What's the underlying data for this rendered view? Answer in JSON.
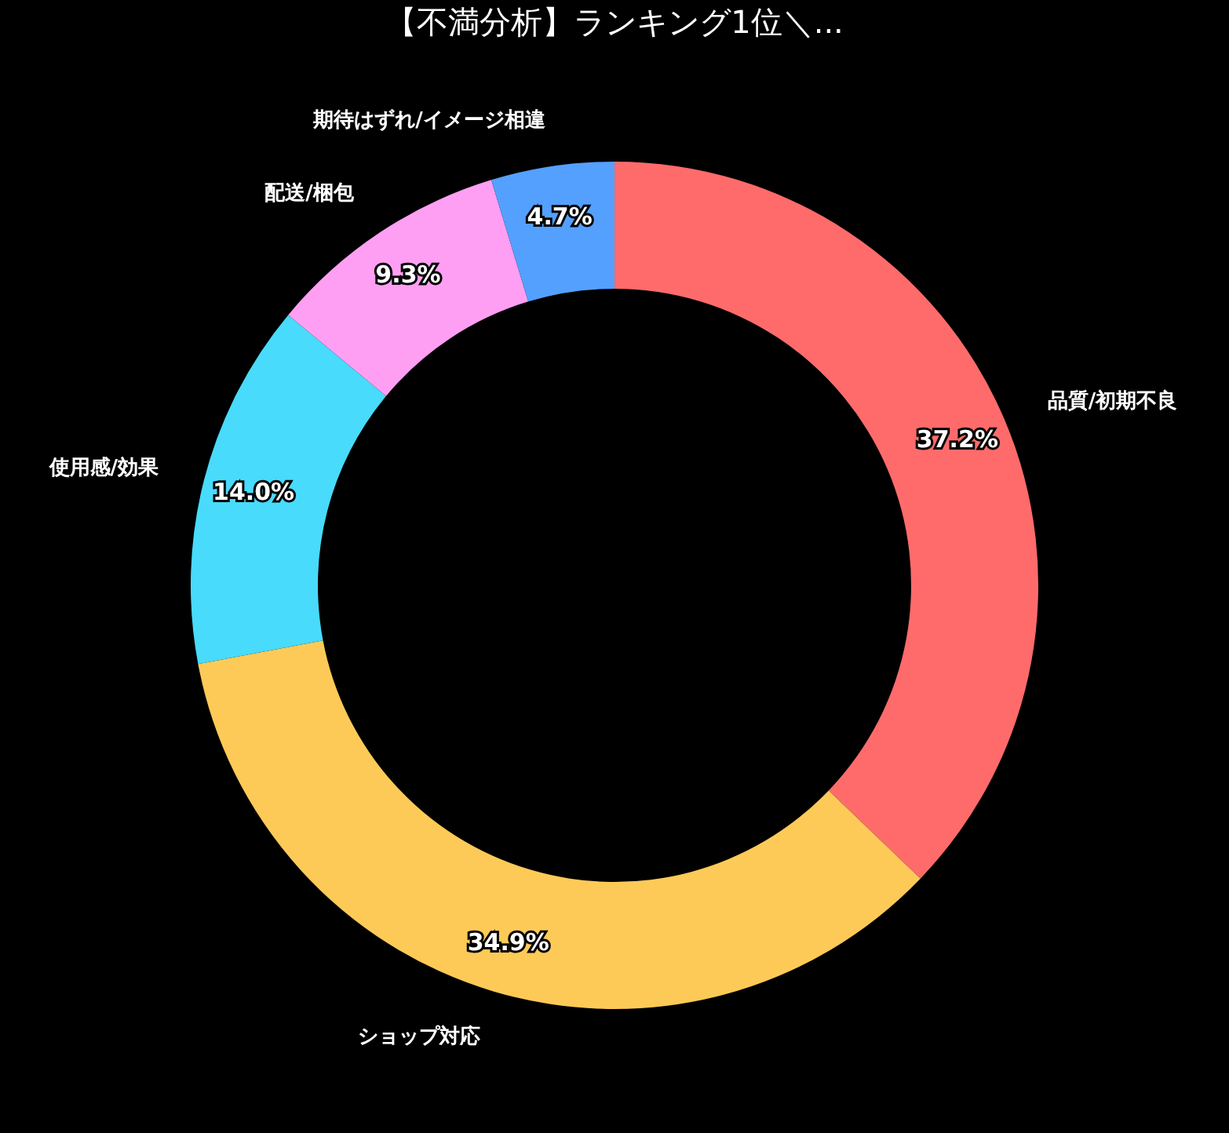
{
  "chart_data": {
    "type": "donut",
    "title": "【不満分析】ランキング1位＼...",
    "categories": [
      "品質/初期不良",
      "ショップ対応",
      "使用感/効果",
      "配送/梱包",
      "期待はずれ/イメージ相違"
    ],
    "values": [
      37.2,
      34.9,
      14.0,
      9.3,
      4.7
    ],
    "colors": [
      "#ff6b6b",
      "#feca57",
      "#48dbfb",
      "#ff9ff3",
      "#54a0ff"
    ],
    "value_labels": [
      "37.2%",
      "34.9%",
      "14.0%",
      "9.3%",
      "4.7%"
    ],
    "legend": false
  }
}
